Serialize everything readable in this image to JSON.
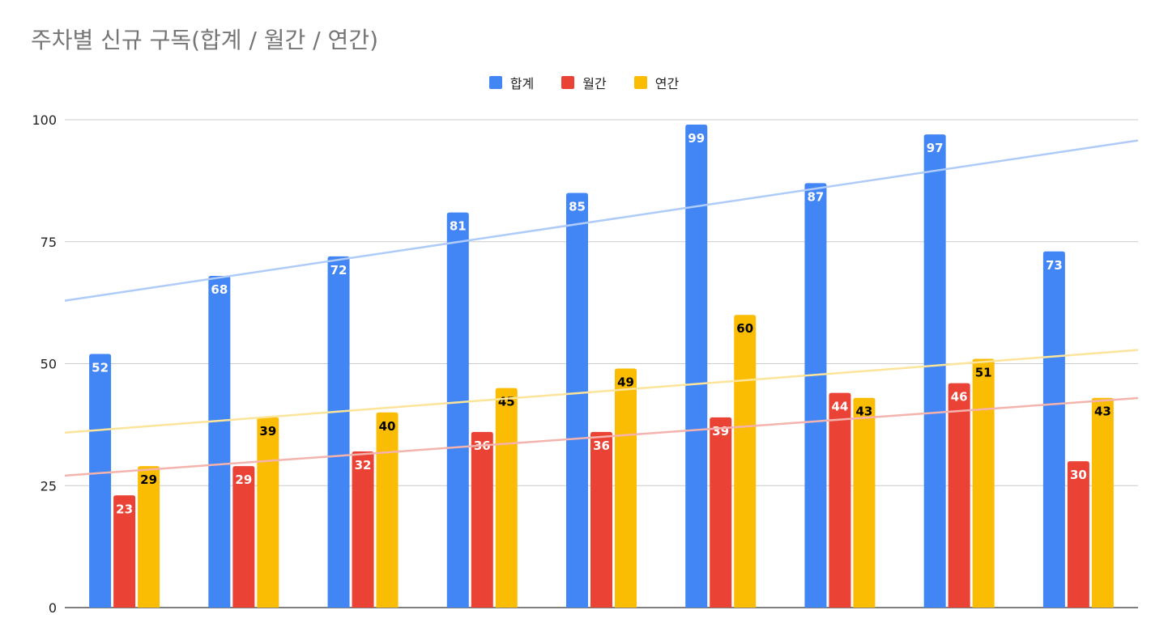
{
  "chart_data": {
    "type": "bar",
    "title": "주차별 신규 구독(합계 / 월간 / 연간)",
    "xlabel": "",
    "ylabel": "",
    "ylim": [
      0,
      100
    ],
    "yticks": [
      0,
      25,
      50,
      75,
      100
    ],
    "grid": true,
    "legend_position": "top-center",
    "trendlines": true,
    "categories": [
      "",
      "",
      "",
      "",
      "",
      "",
      "",
      "",
      ""
    ],
    "series": [
      {
        "name": "합계",
        "color": "#4285f4",
        "label_color": "#ffffff",
        "trend_color": "#aecbfa",
        "values": [
          52,
          68,
          72,
          81,
          85,
          99,
          87,
          97,
          73
        ]
      },
      {
        "name": "월간",
        "color": "#ea4335",
        "label_color": "#ffffff",
        "trend_color": "#f4b3ad",
        "values": [
          23,
          29,
          32,
          36,
          36,
          39,
          44,
          46,
          30
        ]
      },
      {
        "name": "연간",
        "color": "#fbbc04",
        "label_color": "#000000",
        "trend_color": "#fde49b",
        "values": [
          29,
          39,
          40,
          45,
          49,
          60,
          43,
          51,
          43
        ]
      }
    ]
  }
}
